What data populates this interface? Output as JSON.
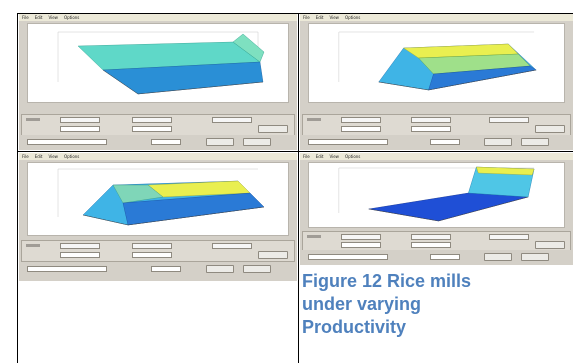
{
  "caption": {
    "line1": "Figure 12 Rice mills",
    "line2": "under varying",
    "line3": "Productivity"
  },
  "screenshot_menu": [
    "File",
    "Edit",
    "View",
    "Options"
  ],
  "colors": {
    "caption": "#4f81bd",
    "window_gray": "#d4d0c8",
    "surface_low": "#1f5fd6",
    "surface_mid": "#3fc4e0",
    "surface_high": "#f0f04a"
  },
  "panels": [
    {
      "id": "top-left",
      "surface": "flat-rise-at-edge"
    },
    {
      "id": "top-right",
      "surface": "plateau"
    },
    {
      "id": "bottom-left",
      "surface": "plateau-wide"
    },
    {
      "id": "bottom-right",
      "surface": "step-back-wall"
    }
  ]
}
